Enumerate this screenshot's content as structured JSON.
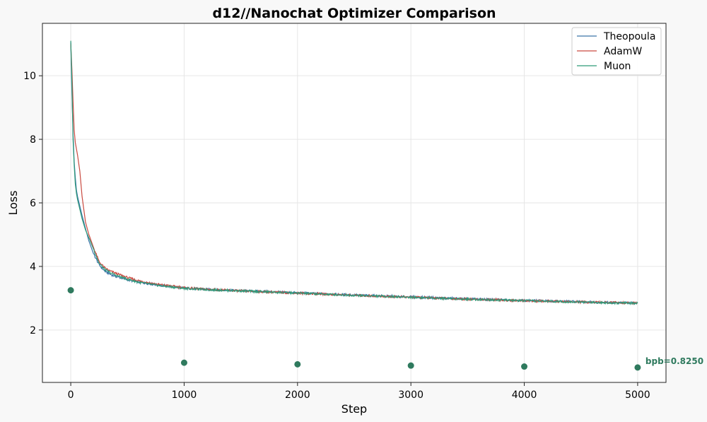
{
  "chart_data": {
    "type": "line",
    "title": "d12//Nanochat Optimizer Comparison",
    "xlabel": "Step",
    "ylabel": "Loss",
    "xlim": [
      -250,
      5250
    ],
    "ylim": [
      0.35,
      11.65
    ],
    "xticks": [
      0,
      1000,
      2000,
      3000,
      4000,
      5000
    ],
    "yticks": [
      2,
      4,
      6,
      8,
      10
    ],
    "grid": true,
    "legend_position": "top-right",
    "colors": {
      "Theopoula": "#3b73a8",
      "AdamW": "#c94a40",
      "Muon": "#2e9a78",
      "bpb_points": "#2f7a5e"
    },
    "series": [
      {
        "name": "Theopoula",
        "x": [
          0,
          10,
          20,
          30,
          40,
          50,
          60,
          80,
          100,
          130,
          160,
          200,
          250,
          300,
          350,
          400,
          500,
          600,
          700,
          800,
          900,
          1000,
          1200,
          1500,
          2000,
          2500,
          3000,
          3500,
          4000,
          4500,
          4800,
          5000
        ],
        "y": [
          11.05,
          9.5,
          8.2,
          7.3,
          6.8,
          6.4,
          6.2,
          5.9,
          5.6,
          5.2,
          4.8,
          4.4,
          4.05,
          3.85,
          3.75,
          3.68,
          3.58,
          3.5,
          3.45,
          3.4,
          3.36,
          3.32,
          3.28,
          3.24,
          3.17,
          3.1,
          3.04,
          2.98,
          2.93,
          2.89,
          2.86,
          2.85
        ]
      },
      {
        "name": "AdamW",
        "x": [
          0,
          10,
          20,
          30,
          40,
          50,
          60,
          80,
          100,
          130,
          160,
          200,
          250,
          300,
          350,
          400,
          500,
          600,
          700,
          800,
          900,
          1000,
          1200,
          1500,
          2000,
          2500,
          3000,
          3500,
          4000,
          4500,
          4800,
          5000
        ],
        "y": [
          11.0,
          10.2,
          9.2,
          8.3,
          7.9,
          7.7,
          7.5,
          7.0,
          6.2,
          5.4,
          5.0,
          4.6,
          4.15,
          3.95,
          3.85,
          3.78,
          3.65,
          3.55,
          3.48,
          3.42,
          3.38,
          3.33,
          3.28,
          3.23,
          3.16,
          3.09,
          3.03,
          2.97,
          2.92,
          2.88,
          2.86,
          2.84
        ]
      },
      {
        "name": "Muon",
        "x": [
          0,
          10,
          20,
          30,
          40,
          50,
          60,
          80,
          100,
          130,
          160,
          200,
          250,
          300,
          350,
          400,
          500,
          600,
          700,
          800,
          900,
          1000,
          1200,
          1500,
          2000,
          2500,
          3000,
          3500,
          4000,
          4500,
          4800,
          5000
        ],
        "y": [
          11.1,
          9.8,
          8.0,
          7.2,
          6.6,
          6.3,
          6.1,
          5.8,
          5.5,
          5.15,
          4.9,
          4.55,
          4.1,
          3.9,
          3.8,
          3.72,
          3.6,
          3.5,
          3.44,
          3.39,
          3.35,
          3.31,
          3.27,
          3.23,
          3.16,
          3.09,
          3.03,
          2.97,
          2.92,
          2.88,
          2.85,
          2.84
        ]
      }
    ],
    "points": {
      "name": "bpb",
      "x": [
        0,
        1000,
        2000,
        3000,
        4000,
        5000
      ],
      "y": [
        3.25,
        0.97,
        0.92,
        0.88,
        0.85,
        0.82
      ]
    },
    "annotation": {
      "text": "bpb=0.8250",
      "x": 5000,
      "y": 0.82
    }
  }
}
